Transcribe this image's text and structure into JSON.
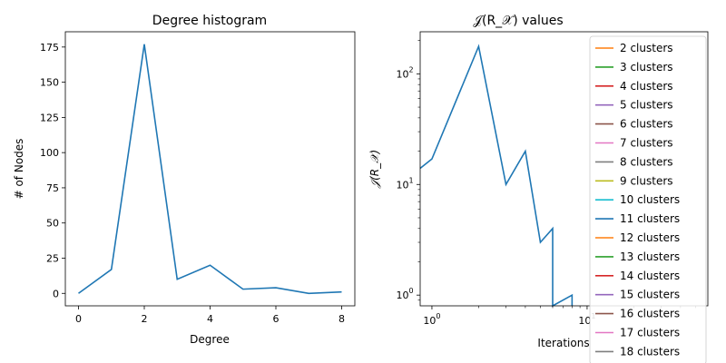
{
  "chart_data": [
    {
      "type": "line",
      "title": "Degree histogram",
      "xlabel": "Degree",
      "ylabel": "# of Nodes",
      "xlim": [
        -0.4,
        8.4
      ],
      "ylim": [
        -8.85,
        185.85
      ],
      "xticks": [
        0,
        2,
        4,
        6,
        8
      ],
      "yticks": [
        0,
        25,
        50,
        75,
        100,
        125,
        150,
        175
      ],
      "x": [
        0,
        1,
        2,
        3,
        4,
        5,
        6,
        7,
        8
      ],
      "series": [
        {
          "values": [
            0,
            17,
            177,
            10,
            20,
            3,
            4,
            0,
            1
          ],
          "color": "#1f77b4"
        }
      ]
    },
    {
      "type": "line",
      "title": "𝒥(R_𝒳) values",
      "xlabel": "Iterations",
      "ylabel": "𝒥(R_𝒳)",
      "xscale": "log",
      "yscale": "log",
      "xlim": [
        0.84,
        60
      ],
      "ylim": [
        0.8,
        240
      ],
      "xtick_labels": [
        "10^0",
        "10^1"
      ],
      "ytick_labels": [
        "10^0",
        "10^1",
        "10^2"
      ],
      "legend_placement": "upper right",
      "series": [
        {
          "name": "2 clusters",
          "color": "#ff7f0e",
          "x": [],
          "values": []
        },
        {
          "name": "3 clusters",
          "color": "#2ca02c",
          "x": [],
          "values": []
        },
        {
          "name": "4 clusters",
          "color": "#d62728",
          "x": [],
          "values": []
        },
        {
          "name": "5 clusters",
          "color": "#9467bd",
          "x": [],
          "values": []
        },
        {
          "name": "6 clusters",
          "color": "#8c564b",
          "x": [],
          "values": []
        },
        {
          "name": "7 clusters",
          "color": "#e377c2",
          "x": [],
          "values": []
        },
        {
          "name": "8 clusters",
          "color": "#7f7f7f",
          "x": [],
          "values": []
        },
        {
          "name": "9 clusters",
          "color": "#bcbd22",
          "x": [],
          "values": []
        },
        {
          "name": "10 clusters",
          "color": "#17becf",
          "x": [],
          "values": []
        },
        {
          "name": "11 clusters",
          "color": "#1f77b4",
          "x": [
            0.84,
            1,
            2,
            3,
            4,
            5,
            6,
            6,
            8,
            8
          ],
          "values": [
            14,
            17,
            177,
            10,
            20,
            3,
            4,
            0.5,
            1,
            0.5
          ]
        },
        {
          "name": "12 clusters",
          "color": "#ff7f0e",
          "x": [],
          "values": []
        },
        {
          "name": "13 clusters",
          "color": "#2ca02c",
          "x": [],
          "values": []
        },
        {
          "name": "14 clusters",
          "color": "#d62728",
          "x": [],
          "values": []
        },
        {
          "name": "15 clusters",
          "color": "#9467bd",
          "x": [],
          "values": []
        },
        {
          "name": "16 clusters",
          "color": "#8c564b",
          "x": [],
          "values": []
        },
        {
          "name": "17 clusters",
          "color": "#e377c2",
          "x": [],
          "values": []
        },
        {
          "name": "18 clusters",
          "color": "#7f7f7f",
          "x": [],
          "values": []
        }
      ]
    }
  ]
}
